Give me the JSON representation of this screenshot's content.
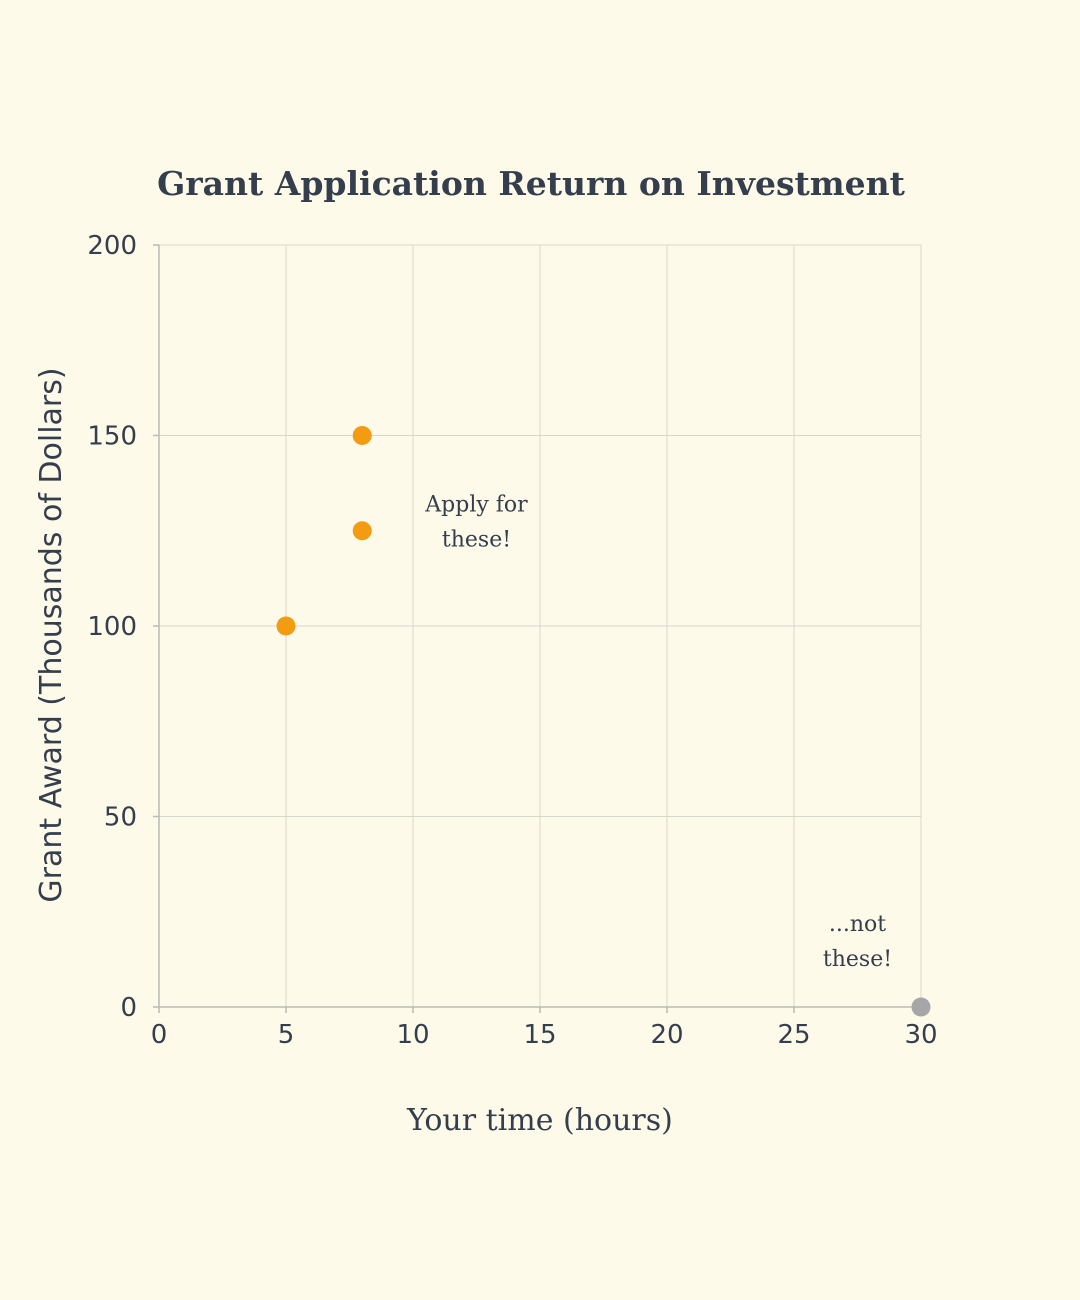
{
  "chart_data": {
    "type": "scatter",
    "title": "Grant Application Return on Investment",
    "xlabel": "Your time (hours)",
    "ylabel": "Grant Award (Thousands of Dollars)",
    "xlim": [
      0,
      30
    ],
    "ylim": [
      0,
      200
    ],
    "x_ticks": [
      0,
      5,
      10,
      15,
      20,
      25,
      30
    ],
    "y_ticks": [
      0,
      50,
      100,
      150,
      200
    ],
    "grid": true,
    "legend": "none",
    "series": [
      {
        "color": "#f39c12",
        "points": [
          {
            "x": 5,
            "y": 100
          },
          {
            "x": 8,
            "y": 125
          },
          {
            "x": 8,
            "y": 150
          }
        ]
      },
      {
        "color": "#a6a6a6",
        "points": [
          {
            "x": 30,
            "y": 0
          }
        ]
      }
    ],
    "annotations": [
      {
        "lines": [
          "Apply for",
          "these!"
        ],
        "x": 12.5,
        "y": 130
      },
      {
        "lines": [
          "...not",
          "these!"
        ],
        "x": 27.5,
        "y": 20
      }
    ]
  }
}
